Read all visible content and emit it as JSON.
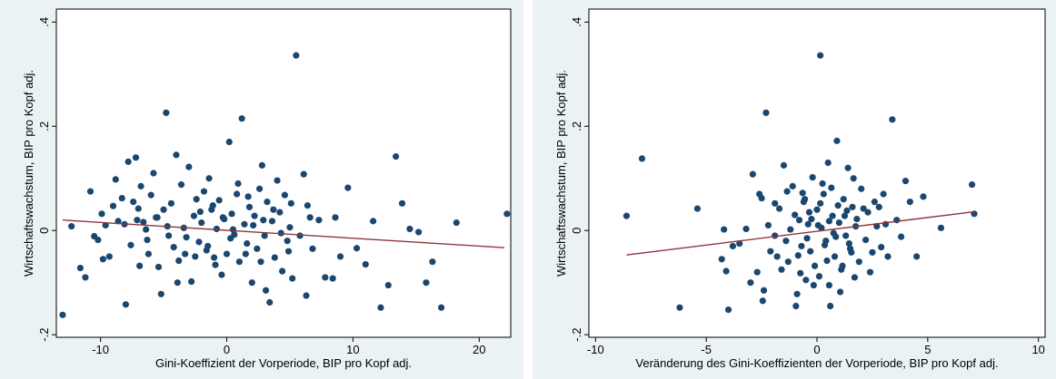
{
  "chart_data": [
    {
      "type": "scatter",
      "title": "",
      "xlabel": "Gini-Koeffizient der Vorperiode, BIP pro Kopf adj.",
      "ylabel": "Wirtschaftswachstum, BIP pro Kopf adj.",
      "xlim": [
        -13.5,
        22.5
      ],
      "ylim": [
        -0.205,
        0.425
      ],
      "xticks": [
        -10,
        0,
        10,
        20
      ],
      "xtick_labels": [
        "-10",
        "0",
        "10",
        "20"
      ],
      "yticks": [
        -0.2,
        0,
        0.2,
        0.4
      ],
      "ytick_labels": [
        "-.2",
        "0",
        ".2",
        ".4"
      ],
      "grid": false,
      "point_color": "#1a476f",
      "fit_color": "#90353b",
      "fit_line": {
        "x": [
          -13,
          22
        ],
        "y": [
          0.02,
          -0.033
        ]
      },
      "points": [
        [
          -13,
          -0.162
        ],
        [
          -12.3,
          0.008
        ],
        [
          -11.6,
          -0.072
        ],
        [
          -11.2,
          -0.09
        ],
        [
          -10.8,
          0.075
        ],
        [
          -10.5,
          -0.011
        ],
        [
          -10.2,
          -0.018
        ],
        [
          -9.9,
          0.032
        ],
        [
          -9.6,
          0.01
        ],
        [
          -9.3,
          -0.05
        ],
        [
          -9,
          0.047
        ],
        [
          -8.8,
          0.098
        ],
        [
          -8.6,
          0.018
        ],
        [
          -8.3,
          0.062
        ],
        [
          -8,
          -0.142
        ],
        [
          -7.8,
          0.132
        ],
        [
          -7.6,
          -0.028
        ],
        [
          -7.4,
          0.055
        ],
        [
          -7.2,
          0.14
        ],
        [
          -7,
          0.042
        ],
        [
          -6.8,
          0.085
        ],
        [
          -6.6,
          0.016
        ],
        [
          -6.4,
          0.002
        ],
        [
          -6.2,
          -0.045
        ],
        [
          -6,
          0.068
        ],
        [
          -5.8,
          0.11
        ],
        [
          -5.6,
          0.025
        ],
        [
          -5.4,
          -0.07
        ],
        [
          -5.2,
          -0.122
        ],
        [
          -5,
          0.04
        ],
        [
          -4.8,
          0.226
        ],
        [
          -4.6,
          -0.01
        ],
        [
          -4.4,
          0.052
        ],
        [
          -4.2,
          -0.032
        ],
        [
          -4,
          0.145
        ],
        [
          -3.8,
          -0.058
        ],
        [
          -3.6,
          0.088
        ],
        [
          -3.4,
          0.005
        ],
        [
          -3.2,
          -0.013
        ],
        [
          -3,
          0.122
        ],
        [
          -2.8,
          -0.098
        ],
        [
          -2.6,
          0.028
        ],
        [
          -2.4,
          0.06
        ],
        [
          -2.2,
          -0.022
        ],
        [
          -2,
          0.015
        ],
        [
          -1.8,
          0.075
        ],
        [
          -1.6,
          -0.038
        ],
        [
          -1.4,
          0.1
        ],
        [
          -1.2,
          0.04
        ],
        [
          -1,
          -0.052
        ],
        [
          -0.8,
          0.003
        ],
        [
          -0.6,
          0.058
        ],
        [
          -0.4,
          -0.085
        ],
        [
          -0.2,
          0.022
        ],
        [
          0,
          -0.045
        ],
        [
          0.2,
          0.17
        ],
        [
          0.4,
          0.032
        ],
        [
          0.6,
          -0.008
        ],
        [
          0.8,
          0.07
        ],
        [
          1,
          -0.06
        ],
        [
          1.2,
          0.215
        ],
        [
          1.4,
          0.012
        ],
        [
          1.6,
          -0.025
        ],
        [
          1.8,
          0.045
        ],
        [
          2,
          -0.1
        ],
        [
          2.2,
          0.028
        ],
        [
          2.4,
          -0.035
        ],
        [
          2.6,
          0.08
        ],
        [
          2.8,
          0.125
        ],
        [
          3,
          -0.01
        ],
        [
          3.2,
          0.055
        ],
        [
          3.4,
          -0.138
        ],
        [
          3.6,
          0.018
        ],
        [
          3.8,
          -0.052
        ],
        [
          4,
          0.096
        ],
        [
          4.2,
          0.035
        ],
        [
          4.4,
          -0.078
        ],
        [
          4.6,
          0.068
        ],
        [
          4.8,
          -0.02
        ],
        [
          5,
          0.006
        ],
        [
          5.2,
          -0.092
        ],
        [
          5.5,
          0.336
        ],
        [
          5.8,
          -0.01
        ],
        [
          6.1,
          0.108
        ],
        [
          6.4,
          0.048
        ],
        [
          6.8,
          -0.035
        ],
        [
          7.3,
          0.02
        ],
        [
          7.8,
          -0.09
        ],
        [
          8.4,
          -0.092
        ],
        [
          9,
          -0.05
        ],
        [
          9.6,
          0.082
        ],
        [
          10.3,
          -0.034
        ],
        [
          11,
          -0.065
        ],
        [
          11.6,
          0.018
        ],
        [
          12.2,
          -0.148
        ],
        [
          12.8,
          -0.105
        ],
        [
          13.4,
          0.142
        ],
        [
          13.9,
          0.052
        ],
        [
          14.5,
          0.003
        ],
        [
          15.2,
          -0.003
        ],
        [
          15.8,
          -0.1
        ],
        [
          16.3,
          -0.06
        ],
        [
          17,
          -0.148
        ],
        [
          18.2,
          0.015
        ],
        [
          22.2,
          0.032
        ],
        [
          -3.3,
          -0.045
        ],
        [
          -2.1,
          0.036
        ],
        [
          -0.9,
          -0.066
        ],
        [
          0.9,
          0.09
        ],
        [
          2.1,
          0.01
        ],
        [
          3.1,
          -0.115
        ],
        [
          4.3,
          -0.005
        ],
        [
          5.1,
          0.052
        ],
        [
          6.6,
          0.025
        ],
        [
          -6.9,
          -0.068
        ],
        [
          -5.5,
          0.025
        ],
        [
          -4.7,
          0.008
        ],
        [
          -1.5,
          -0.03
        ],
        [
          -0.3,
          0.025
        ],
        [
          1.5,
          -0.045
        ],
        [
          2.7,
          -0.06
        ],
        [
          3.7,
          0.04
        ],
        [
          4.9,
          -0.04
        ],
        [
          -8.1,
          0.012
        ],
        [
          -7.1,
          0.02
        ],
        [
          -2.5,
          -0.05
        ],
        [
          -1.1,
          0.048
        ],
        [
          0.3,
          -0.015
        ],
        [
          1.7,
          0.065
        ],
        [
          2.9,
          0.02
        ],
        [
          -9.8,
          -0.055
        ],
        [
          -6.3,
          -0.018
        ],
        [
          -3.9,
          -0.1
        ],
        [
          0.5,
          0.002
        ],
        [
          6.3,
          -0.125
        ],
        [
          8.6,
          0.025
        ]
      ]
    },
    {
      "type": "scatter",
      "title": "",
      "xlabel": "Veränderung des Gini-Koeffizienten der Vorperiode, BIP pro Kopf adj.",
      "ylabel": "Wirtschaftswachstum, BIP pro Kopf adj.",
      "xlim": [
        -10.3,
        10.3
      ],
      "ylim": [
        -0.205,
        0.425
      ],
      "xticks": [
        -10,
        -5,
        0,
        5,
        10
      ],
      "xtick_labels": [
        "-10",
        "-5",
        "0",
        "5",
        "10"
      ],
      "yticks": [
        -0.2,
        0,
        0.2,
        0.4
      ],
      "ytick_labels": [
        "-.2",
        "0",
        ".2",
        ".4"
      ],
      "grid": false,
      "point_color": "#1a476f",
      "fit_color": "#90353b",
      "fit_line": {
        "x": [
          -8.6,
          7.1
        ],
        "y": [
          -0.047,
          0.036
        ]
      },
      "points": [
        [
          -8.6,
          0.028
        ],
        [
          -7.9,
          0.138
        ],
        [
          -6.2,
          -0.148
        ],
        [
          -5.4,
          0.042
        ],
        [
          -4.3,
          -0.055
        ],
        [
          -4.2,
          0.002
        ],
        [
          -4,
          -0.152
        ],
        [
          -4.1,
          -0.078
        ],
        [
          -3.8,
          -0.03
        ],
        [
          -3.5,
          -0.025
        ],
        [
          -3.2,
          0.003
        ],
        [
          -2.9,
          0.108
        ],
        [
          -2.6,
          0.07
        ],
        [
          -2.4,
          -0.115
        ],
        [
          -2.3,
          0.226
        ],
        [
          -2.1,
          -0.04
        ],
        [
          -1.9,
          -0.01
        ],
        [
          -1.7,
          0.042
        ],
        [
          -1.5,
          0.125
        ],
        [
          -1.3,
          -0.06
        ],
        [
          -1.1,
          0.085
        ],
        [
          -0.9,
          -0.122
        ],
        [
          -0.8,
          0.02
        ],
        [
          -0.7,
          -0.03
        ],
        [
          -0.6,
          0.055
        ],
        [
          -0.5,
          -0.095
        ],
        [
          -0.4,
          0.012
        ],
        [
          -0.3,
          -0.04
        ],
        [
          -0.2,
          0.102
        ],
        [
          -0.1,
          -0.068
        ],
        [
          0,
          0.04
        ],
        [
          0.1,
          -0.088
        ],
        [
          0.15,
          0.336
        ],
        [
          0.2,
          0.005
        ],
        [
          0.3,
          0.07
        ],
        [
          0.4,
          -0.02
        ],
        [
          0.5,
          0.13
        ],
        [
          0.6,
          -0.145
        ],
        [
          0.7,
          0.028
        ],
        [
          0.8,
          -0.05
        ],
        [
          0.9,
          0.172
        ],
        [
          1,
          0.015
        ],
        [
          1.1,
          -0.075
        ],
        [
          1.2,
          0.06
        ],
        [
          1.3,
          -0.01
        ],
        [
          1.4,
          0.12
        ],
        [
          1.5,
          -0.035
        ],
        [
          1.6,
          0.045
        ],
        [
          1.7,
          -0.09
        ],
        [
          1.8,
          0.022
        ],
        [
          1.9,
          -0.06
        ],
        [
          2,
          0.08
        ],
        [
          2.2,
          -0.018
        ],
        [
          2.3,
          0.035
        ],
        [
          2.4,
          -0.08
        ],
        [
          2.6,
          0.055
        ],
        [
          2.7,
          0.008
        ],
        [
          2.9,
          -0.032
        ],
        [
          3,
          0.07
        ],
        [
          3.2,
          -0.05
        ],
        [
          3.4,
          0.213
        ],
        [
          3.6,
          0.02
        ],
        [
          3.8,
          -0.012
        ],
        [
          4,
          0.095
        ],
        [
          4.2,
          0.055
        ],
        [
          4.5,
          -0.05
        ],
        [
          4.8,
          0.065
        ],
        [
          5.6,
          0.005
        ],
        [
          7,
          0.088
        ],
        [
          7.1,
          0.032
        ],
        [
          -1.9,
          0.052
        ],
        [
          -1.6,
          -0.075
        ],
        [
          -1.2,
          0.002
        ],
        [
          -1,
          0.03
        ],
        [
          -0.85,
          -0.048
        ],
        [
          -0.65,
          0.072
        ],
        [
          -0.45,
          -0.015
        ],
        [
          -0.35,
          0.035
        ],
        [
          -0.15,
          -0.105
        ],
        [
          0.05,
          0.01
        ],
        [
          0.25,
          0.09
        ],
        [
          0.45,
          -0.058
        ],
        [
          0.55,
          0.018
        ],
        [
          0.75,
          -0.005
        ],
        [
          0.95,
          0.048
        ],
        [
          1.05,
          -0.118
        ],
        [
          1.25,
          0.028
        ],
        [
          1.45,
          -0.025
        ],
        [
          1.65,
          0.1
        ],
        [
          2.1,
          0.042
        ],
        [
          2.5,
          -0.042
        ],
        [
          3.1,
          0.012
        ],
        [
          -2.7,
          -0.08
        ],
        [
          -2.2,
          0.01
        ],
        [
          -1.4,
          -0.02
        ],
        [
          -0.55,
          0.06
        ],
        [
          0.35,
          -0.028
        ],
        [
          0.65,
          0.082
        ],
        [
          1.15,
          -0.068
        ],
        [
          1.35,
          0.038
        ],
        [
          -3,
          -0.1
        ],
        [
          -2.5,
          0.062
        ],
        [
          -1.8,
          -0.05
        ],
        [
          -0.25,
          0.022
        ],
        [
          0.85,
          -0.012
        ],
        [
          1.75,
          0.008
        ],
        [
          2.8,
          0.045
        ],
        [
          -1.35,
          0.075
        ],
        [
          -0.75,
          -0.082
        ],
        [
          0.15,
          0.052
        ],
        [
          0.55,
          -0.105
        ],
        [
          1.55,
          -0.042
        ],
        [
          -2.45,
          -0.135
        ],
        [
          -0.95,
          -0.145
        ]
      ]
    }
  ]
}
